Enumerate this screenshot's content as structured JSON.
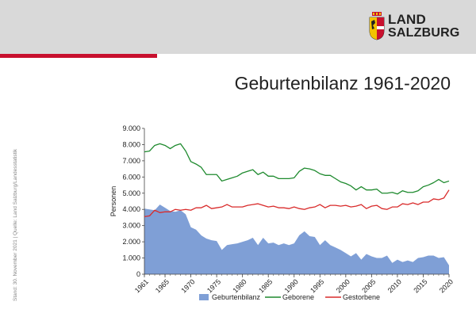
{
  "header": {
    "logo_line1": "LAND",
    "logo_line2": "SALZBURG",
    "accent_color": "#c8102e"
  },
  "side_note": "Stand: 30. November 2021 | Quelle: Land Salzburg/Landesstatistik",
  "chart_data": {
    "type": "line",
    "title": "Geburtenbilanz 1961-2020",
    "ylabel": "Personen",
    "xlabel": "",
    "ylim": [
      0,
      9000
    ],
    "yticks": [
      0,
      1000,
      2000,
      3000,
      4000,
      5000,
      6000,
      7000,
      8000,
      9000
    ],
    "ytick_labels": [
      "0",
      "1.000",
      "2.000",
      "3.000",
      "4.000",
      "5.000",
      "6.000",
      "7.000",
      "8.000",
      "9.000"
    ],
    "xticks": [
      1961,
      1965,
      1970,
      1975,
      1980,
      1985,
      1990,
      1995,
      2000,
      2005,
      2010,
      2015,
      2020
    ],
    "x": [
      1961,
      1962,
      1963,
      1964,
      1965,
      1966,
      1967,
      1968,
      1969,
      1970,
      1971,
      1972,
      1973,
      1974,
      1975,
      1976,
      1977,
      1978,
      1979,
      1980,
      1981,
      1982,
      1983,
      1984,
      1985,
      1986,
      1987,
      1988,
      1989,
      1990,
      1991,
      1992,
      1993,
      1994,
      1995,
      1996,
      1997,
      1998,
      1999,
      2000,
      2001,
      2002,
      2003,
      2004,
      2005,
      2006,
      2007,
      2008,
      2009,
      2010,
      2011,
      2012,
      2013,
      2014,
      2015,
      2016,
      2017,
      2018,
      2019,
      2020
    ],
    "series": [
      {
        "name": "Geburtenbilanz",
        "kind": "area",
        "color": "#7f9fd6",
        "values": [
          4050,
          4000,
          3950,
          4300,
          4100,
          3900,
          3850,
          3950,
          3700,
          2900,
          2750,
          2400,
          2200,
          2100,
          2050,
          1500,
          1800,
          1850,
          1900,
          2000,
          2100,
          2250,
          1800,
          2250,
          1900,
          1950,
          1800,
          1900,
          1800,
          1900,
          2400,
          2650,
          2350,
          2300,
          1800,
          2100,
          1800,
          1650,
          1500,
          1300,
          1100,
          1300,
          900,
          1250,
          1100,
          1000,
          1000,
          1150,
          700,
          900,
          750,
          850,
          750,
          1000,
          1050,
          1150,
          1150,
          1000,
          1050,
          550
        ]
      },
      {
        "name": "Geborene",
        "kind": "line",
        "color": "#1e8a2e",
        "values": [
          7550,
          7600,
          7950,
          8050,
          7950,
          7750,
          7950,
          8050,
          7600,
          6950,
          6800,
          6600,
          6150,
          6150,
          6150,
          5750,
          5850,
          5950,
          6050,
          6250,
          6350,
          6450,
          6150,
          6300,
          6050,
          6050,
          5900,
          5900,
          5900,
          5950,
          6350,
          6550,
          6500,
          6400,
          6200,
          6100,
          6100,
          5900,
          5700,
          5600,
          5450,
          5200,
          5400,
          5200,
          5200,
          5250,
          5000,
          5000,
          5050,
          4950,
          5150,
          5050,
          5050,
          5150,
          5400,
          5500,
          5650,
          5850,
          5650,
          5750
        ]
      },
      {
        "name": "Gestorbene",
        "kind": "line",
        "color": "#d92b2b",
        "values": [
          3550,
          3600,
          3950,
          3800,
          3850,
          3850,
          4000,
          3950,
          4000,
          3950,
          4100,
          4100,
          4250,
          4050,
          4100,
          4150,
          4300,
          4150,
          4150,
          4150,
          4250,
          4300,
          4350,
          4250,
          4150,
          4200,
          4100,
          4100,
          4050,
          4150,
          4050,
          4000,
          4100,
          4150,
          4300,
          4100,
          4250,
          4250,
          4200,
          4250,
          4150,
          4200,
          4300,
          4050,
          4200,
          4250,
          4050,
          4000,
          4150,
          4150,
          4350,
          4300,
          4400,
          4300,
          4450,
          4450,
          4650,
          4600,
          4700,
          5200
        ]
      }
    ],
    "legend": {
      "position": "bottom",
      "entries": [
        "Geburtenbilanz",
        "Geborene",
        "Gestorbene"
      ]
    },
    "grid": false
  }
}
